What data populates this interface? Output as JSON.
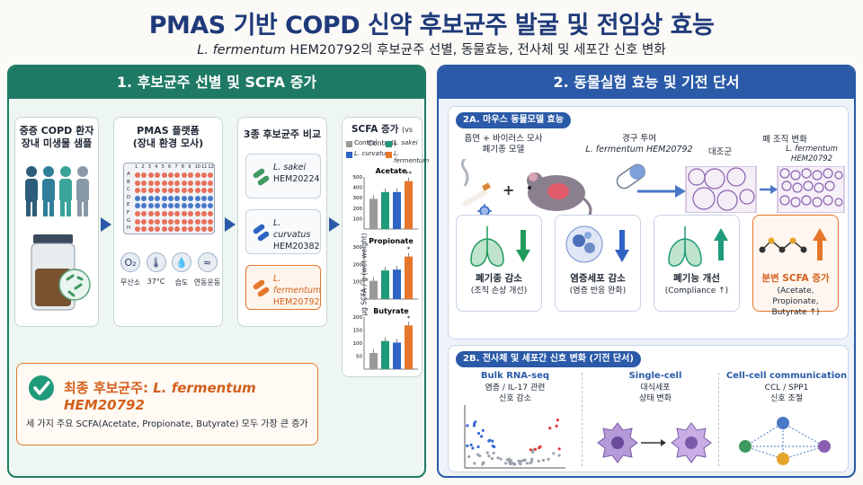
{
  "header": {
    "title": "PMAS 기반 COPD 신약 후보균주 발굴 및 전임상 효능",
    "subtitle_italic": "L. fermentum",
    "subtitle_rest": " HEM20792의 후보균주 선별, 동물효능, 전사체 및 세포간 신호 변화"
  },
  "panel1": {
    "header": "1. 후보균주 선별 및 SCFA 증가",
    "step1": {
      "title": "중증 COPD 환자\n장내 미생물 샘플"
    },
    "step2": {
      "title": "PMAS 플랫폼\n(장내 환경 모사)",
      "columns": [
        "1",
        "2",
        "3",
        "4",
        "5",
        "6",
        "7",
        "8",
        "9",
        "10",
        "11",
        "12"
      ],
      "rows": [
        "A",
        "B",
        "C",
        "D",
        "E",
        "F",
        "G",
        "H"
      ],
      "conditions": [
        "무산소",
        "37°C",
        "습도",
        "연동운동"
      ],
      "condition_icons": [
        "o2-icon",
        "thermometer-icon",
        "humidity-drop-icon",
        "peristalsis-wave-icon"
      ]
    },
    "step3": {
      "title": "3종 후보균주 비교",
      "candidates": [
        {
          "species": "L. sakei",
          "strain": "HEM20224",
          "color": "#3f9a62"
        },
        {
          "species": "L. curvatus",
          "strain": "HEM20382",
          "color": "#2f63c4"
        },
        {
          "species": "L. fermentum",
          "strain": "HEM20792",
          "color": "#e5762a"
        }
      ]
    },
    "step4": {
      "title": "SCFA 증가",
      "title_note": "(vs Control)",
      "legend": [
        "Control",
        "L. sakei",
        "L. curvatus",
        "L. fermentum"
      ],
      "ylabel": "μg SCFA / g (wet weight)"
    },
    "final": {
      "label": "최종 후보균주: ",
      "strain": "L. fermentum HEM20792",
      "desc": "세 가지 주요 SCFA(Acetate, Propionate, Butyrate) 모두 가장 큰 증가"
    }
  },
  "chart_data": [
    {
      "type": "bar",
      "title": "Acetate",
      "categories": [
        "Control",
        "L. sakei",
        "L. curvatus",
        "L. fermentum"
      ],
      "values": [
        290,
        355,
        355,
        460
      ],
      "ylim": [
        0,
        500
      ],
      "yticks": [
        "100",
        "200",
        "300",
        "400",
        "500"
      ],
      "colors": [
        "#9a9a9a",
        "#1f9a7a",
        "#2f63c4",
        "#e5762a"
      ],
      "annotation": "**"
    },
    {
      "type": "bar",
      "title": "Propionate",
      "categories": [
        "Control",
        "L. sakei",
        "L. curvatus",
        "L. fermentum"
      ],
      "values": [
        105,
        165,
        170,
        245
      ],
      "ylim": [
        0,
        300
      ],
      "yticks": [
        "100",
        "200",
        "300"
      ],
      "colors": [
        "#9a9a9a",
        "#1f9a7a",
        "#2f63c4",
        "#e5762a"
      ],
      "annotation": "*"
    },
    {
      "type": "bar",
      "title": "Butyrate",
      "categories": [
        "Control",
        "L. sakei",
        "L. curvatus",
        "L. fermentum"
      ],
      "values": [
        62,
        108,
        102,
        168
      ],
      "ylim": [
        0,
        200
      ],
      "yticks": [
        "50",
        "100",
        "150",
        "200"
      ],
      "colors": [
        "#9a9a9a",
        "#1f9a7a",
        "#2f63c4",
        "#e5762a"
      ],
      "annotation": "*"
    }
  ],
  "panel2": {
    "header": "2. 동물실험 효능 및 기전 단서",
    "sub_a": {
      "tag": "2A. 마우스 동물모델 효능",
      "model": "흡연 + 바이러스 모사\n폐기종 모델",
      "dosing_title": "경구 투여",
      "dosing_strain": "L. fermentum HEM20792",
      "histology_title": "폐 조직 변화",
      "control_label": "대조군",
      "treated_label": "L. fermentum\nHEM20792",
      "effects": [
        {
          "label": "폐기종 감소",
          "sub": "(조직 손상 개선)",
          "icon": "lungs-icon",
          "trend": "down",
          "color": "#1f9a5a"
        },
        {
          "label": "염증세포 감소",
          "sub": "(염증 반응 완화)",
          "icon": "immune-cell-icon",
          "trend": "down",
          "color": "#2f63c4"
        },
        {
          "label": "폐기능 개선",
          "sub": "(Compliance ↑)",
          "icon": "lungs-icon",
          "trend": "up",
          "color": "#1f9a7a"
        },
        {
          "label": "분변 SCFA 증가",
          "sub": "(Acetate, Propionate,\nButyrate ↑)",
          "icon": "molecule-icon",
          "trend": "up",
          "color": "#e5762a"
        }
      ]
    },
    "sub_b": {
      "tag": "2B. 전사체 및 세포간 신호 변화 (기전 단서)",
      "items": [
        {
          "title": "Bulk RNA-seq",
          "desc": "염증 / IL-17 관련\n신호 감소"
        },
        {
          "title": "Single-cell",
          "desc": "대식세포\n상태 변화"
        },
        {
          "title": "Cell-cell communication",
          "desc": "CCL / SPP1\n신호 조절"
        }
      ]
    }
  }
}
